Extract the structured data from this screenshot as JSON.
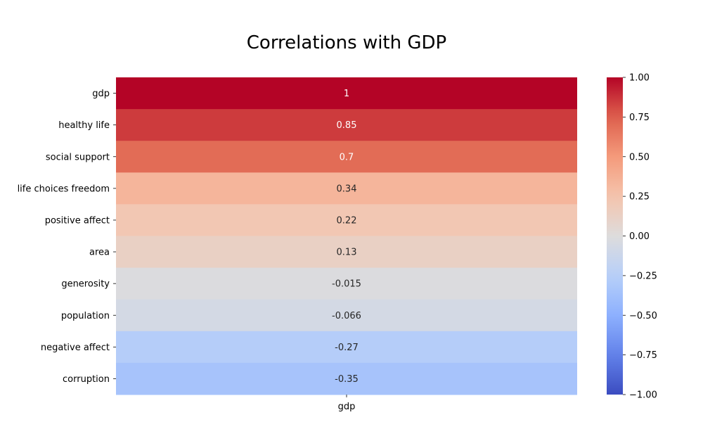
{
  "chart_data": {
    "type": "heatmap",
    "title": "Correlations with GDP",
    "columns": [
      "gdp"
    ],
    "rows": [
      "gdp",
      "healthy life",
      "social support",
      "life choices freedom",
      "positive affect",
      "area",
      "generosity",
      "population",
      "negative affect",
      "corruption"
    ],
    "values": [
      1,
      0.85,
      0.7,
      0.34,
      0.22,
      0.13,
      -0.015,
      -0.066,
      -0.27,
      -0.35
    ],
    "value_labels": [
      "1",
      "0.85",
      "0.7",
      "0.34",
      "0.22",
      "0.13",
      "-0.015",
      "-0.066",
      "-0.27",
      "-0.35"
    ],
    "colormap": "coolwarm",
    "vmin": -1,
    "vmax": 1,
    "colorbar_ticks": [
      1.0,
      0.75,
      0.5,
      0.25,
      0.0,
      -0.25,
      -0.5,
      -0.75,
      -1.0
    ],
    "colorbar_tick_labels": [
      "1.00",
      "0.75",
      "0.50",
      "0.25",
      "0.00",
      "−0.25",
      "−0.50",
      "−0.75",
      "−1.00"
    ],
    "colors": {
      "low": "#3b4cc0",
      "mid": "#dddcdc",
      "high": "#b40426"
    }
  }
}
